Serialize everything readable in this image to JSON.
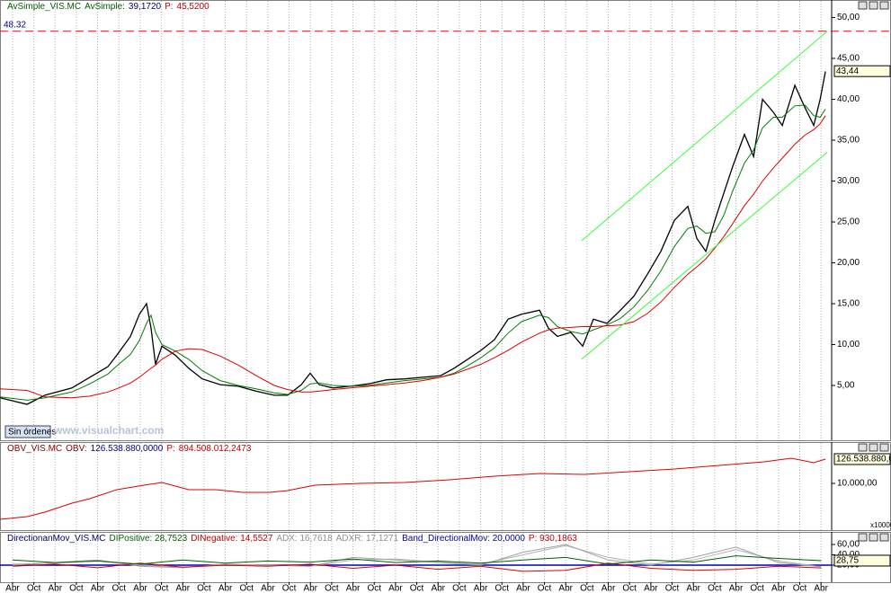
{
  "chart_data": [
    {
      "type": "line",
      "header": [
        {
          "text": "AvSimple_VIS.MC",
          "color": "#006000"
        },
        {
          "text": "AvSimple:",
          "color": "#006000"
        },
        {
          "text": "39,1720",
          "color": "#000080"
        },
        {
          "text": "P:",
          "color": "#c00000"
        },
        {
          "text": "45,5200",
          "color": "#c00000"
        }
      ],
      "xlim": [
        -0.59,
        38.5
      ],
      "xticks": [
        {
          "value": 0,
          "label": "Abr"
        },
        {
          "value": 1,
          "label": "Oct"
        },
        {
          "value": 2,
          "label": "Abr"
        },
        {
          "value": 3,
          "label": "Oct"
        },
        {
          "value": 4,
          "label": "Abr"
        },
        {
          "value": 5,
          "label": "Oct"
        },
        {
          "value": 6,
          "label": "Abr"
        },
        {
          "value": 7,
          "label": "Oct"
        },
        {
          "value": 8,
          "label": "Abr"
        },
        {
          "value": 9,
          "label": "Oct"
        },
        {
          "value": 10,
          "label": "Abr"
        },
        {
          "value": 11,
          "label": "Oct"
        },
        {
          "value": 12,
          "label": "Abr"
        },
        {
          "value": 13,
          "label": "Oct"
        },
        {
          "value": 14,
          "label": "Abr"
        },
        {
          "value": 15,
          "label": "Oct"
        },
        {
          "value": 16,
          "label": "Abr"
        },
        {
          "value": 17,
          "label": "Oct"
        },
        {
          "value": 18,
          "label": "Abr"
        },
        {
          "value": 19,
          "label": "Oct"
        },
        {
          "value": 20,
          "label": "Abr"
        },
        {
          "value": 21,
          "label": "Oct"
        },
        {
          "value": 22,
          "label": "Abr"
        },
        {
          "value": 23,
          "label": "Oct"
        },
        {
          "value": 24,
          "label": "Abr"
        },
        {
          "value": 25,
          "label": "Oct"
        },
        {
          "value": 26,
          "label": "Abr"
        },
        {
          "value": 27,
          "label": "Oct"
        },
        {
          "value": 28,
          "label": "Abr"
        },
        {
          "value": 29,
          "label": "Oct"
        },
        {
          "value": 30,
          "label": "Abr"
        },
        {
          "value": 31,
          "label": "Oct"
        },
        {
          "value": 32,
          "label": "Abr"
        },
        {
          "value": 33,
          "label": "Oct"
        },
        {
          "value": 34,
          "label": "Abr"
        },
        {
          "value": 35,
          "label": "Oct"
        },
        {
          "value": 36,
          "label": "Abr"
        },
        {
          "value": 37,
          "label": "Oct"
        },
        {
          "value": 38,
          "label": "Abr"
        }
      ],
      "ylim": [
        -1.7,
        52.14
      ],
      "yticks": [
        {
          "value": 5,
          "label": "5,00"
        },
        {
          "value": 10,
          "label": "10,00"
        },
        {
          "value": 15,
          "label": "15,00"
        },
        {
          "value": 20,
          "label": "20,00"
        },
        {
          "value": 25,
          "label": "25,00"
        },
        {
          "value": 30,
          "label": "30,00"
        },
        {
          "value": 35,
          "label": "35,00"
        },
        {
          "value": 40,
          "label": "40,00"
        },
        {
          "value": 45,
          "label": "45,00"
        },
        {
          "value": 50,
          "label": "50,00"
        }
      ],
      "x": [
        -0.59,
        0.68,
        1.52,
        2.79,
        3.63,
        4.48,
        4.9,
        5.54,
        5.96,
        6.3,
        6.51,
        6.72,
        7.02,
        7.65,
        8.28,
        8.92,
        9.76,
        10.61,
        11.45,
        12.3,
        12.93,
        13.57,
        13.99,
        14.41,
        15.05,
        15.89,
        16.74,
        17.58,
        18.43,
        19.27,
        20.12,
        20.75,
        21.39,
        22.02,
        22.65,
        23.29,
        23.92,
        24.77,
        25.19,
        25.61,
        26.24,
        26.8,
        27.3,
        27.94,
        28.57,
        29.2,
        29.84,
        30.47,
        31.11,
        31.74,
        32.16,
        32.59,
        33.01,
        33.43,
        33.85,
        34.4,
        34.83,
        35.25,
        35.76,
        36.18,
        36.77,
        37.24,
        37.66,
        37.96,
        38.21
      ],
      "series": [
        {
          "color": "#000000",
          "values": [
            3.5,
            2.7,
            3.8,
            4.7,
            6,
            7.3,
            8.7,
            11,
            13.7,
            15,
            12,
            7.6,
            9.8,
            8.7,
            7.1,
            5.8,
            5.1,
            4.9,
            4.3,
            3.8,
            3.8,
            5.1,
            6.5,
            5.1,
            4.7,
            4.9,
            5.2,
            5.7,
            5.8,
            6,
            6.2,
            7.1,
            8.2,
            9.3,
            10.6,
            13.1,
            13.7,
            14.2,
            12,
            11,
            11.5,
            9.8,
            13.1,
            12.6,
            14.2,
            15.9,
            18.6,
            21.4,
            25.2,
            26.9,
            23,
            21.4,
            25.2,
            28.5,
            31.8,
            35.7,
            33,
            40,
            38.4,
            36.8,
            41.7,
            39,
            36.8,
            40,
            43.4
          ]
        },
        {
          "color": "#008000",
          "values": [
            3.6,
            3.2,
            3.5,
            4.2,
            5.2,
            6.4,
            7.4,
            8.8,
            10.5,
            12.6,
            13.6,
            11.5,
            10,
            9.2,
            8.2,
            6.8,
            5.6,
            5,
            4.6,
            4.1,
            3.9,
            4.4,
            5.2,
            5.3,
            5,
            4.9,
            5,
            5.3,
            5.6,
            5.8,
            6,
            6.5,
            7.4,
            8.4,
            9.6,
            11.4,
            12.8,
            13.6,
            13.3,
            12.2,
            11.6,
            11.3,
            11.8,
            12.4,
            13.2,
            14.6,
            16.6,
            19,
            22,
            24.2,
            24.5,
            23.6,
            23.8,
            25.8,
            28.8,
            32.2,
            33.8,
            36.5,
            37.8,
            37.8,
            39.2,
            39.3,
            38,
            37.8,
            38.8
          ]
        },
        {
          "color": "#e00000",
          "values": [
            4.6,
            4.4,
            3.6,
            3.5,
            3.7,
            4.2,
            4.6,
            5.3,
            6,
            6.7,
            7.1,
            7.5,
            8.2,
            9.2,
            9.5,
            9.4,
            8.6,
            7.5,
            6.2,
            5,
            4.5,
            4.2,
            4.2,
            4.3,
            4.5,
            4.7,
            4.9,
            5.1,
            5.3,
            5.6,
            6,
            6.4,
            7,
            7.6,
            8.4,
            9.3,
            10.3,
            11.4,
            11.8,
            12,
            12.1,
            12.2,
            12.2,
            12.3,
            12.4,
            12.8,
            13.8,
            15.2,
            17,
            18.6,
            19.5,
            20.5,
            21.8,
            23.2,
            24.8,
            27,
            28.4,
            30,
            31.6,
            32.8,
            34.5,
            35.6,
            36.3,
            37,
            38
          ]
        },
        {
          "color": "#33ff33",
          "x": [
            26.75,
            38.29
          ],
          "values": [
            22.7,
            48.3
          ]
        },
        {
          "color": "#33ff33",
          "x": [
            26.75,
            38.29
          ],
          "values": [
            8.2,
            33.5
          ]
        }
      ],
      "hline": {
        "value": 48.32,
        "label": "48.32",
        "color": "#ff0000"
      },
      "last": {
        "value": 43.44,
        "label": "43,44"
      }
    },
    {
      "type": "line",
      "header": [
        {
          "text": "OBV_VIS.MC",
          "color": "#800000"
        },
        {
          "text": "OBV:",
          "color": "#800000"
        },
        {
          "text": "126.538.880,0000",
          "color": "#000080"
        },
        {
          "text": "P:",
          "color": "#c00000"
        },
        {
          "text": "894.508.012,2473",
          "color": "#c00000"
        }
      ],
      "xlim": [
        -0.59,
        38.5
      ],
      "ylim": [
        48940000,
        145170000
      ],
      "yticks": [
        {
          "value": 100000000,
          "label": "10.000,00"
        }
      ],
      "scale_note": "x10000",
      "x": [
        -0.59,
        0.68,
        1.52,
        2.79,
        3.63,
        4.9,
        6.17,
        7.02,
        8.28,
        9.55,
        10.82,
        12.09,
        12.93,
        14.2,
        16.31,
        18.43,
        20.54,
        22.65,
        24.77,
        26.88,
        28.99,
        31.11,
        33.22,
        35.33,
        36.6,
        37.66,
        38.21
      ],
      "series": [
        {
          "color": "#e00000",
          "values": [
            60700000,
            63700000,
            68600000,
            78400000,
            83300000,
            93100000,
            98000000,
            101000000,
            93100000,
            93100000,
            90200000,
            90200000,
            92100000,
            98000000,
            100000000,
            101000000,
            103900000,
            107900000,
            110800000,
            109800000,
            112800000,
            115700000,
            119600000,
            123600000,
            127500000,
            122600000,
            126538880
          ]
        }
      ],
      "last": {
        "value": 126538880,
        "label": "126.538.880,0"
      }
    },
    {
      "type": "line",
      "header": [
        {
          "text": "DirectionanMov_VIS.MC",
          "color": "#000060"
        },
        {
          "text": "DIPositive: 28,7523",
          "color": "#006000"
        },
        {
          "text": "DINegative: 14,5527",
          "color": "#c00000"
        },
        {
          "text": "ADX: 16,7618",
          "color": "#909090"
        },
        {
          "text": "ADXR: 17,1271",
          "color": "#909090"
        },
        {
          "text": "Band_DirectionalMov: 20,0000",
          "color": "#0000a0"
        },
        {
          "text": "P: 930,1863",
          "color": "#c00000"
        }
      ],
      "xlim": [
        -0.59,
        38.5
      ],
      "ylim": [
        -13,
        84.3
      ],
      "yticks": [
        {
          "value": 20,
          "label": "20,00"
        },
        {
          "value": 40,
          "label": "40,00"
        },
        {
          "value": 60,
          "label": "60,00"
        }
      ],
      "x": [
        0,
        2,
        4,
        6,
        8,
        10,
        12,
        14,
        16,
        18,
        20,
        22,
        24,
        26,
        28,
        30,
        32,
        34,
        36,
        38
      ],
      "series": [
        {
          "color": "#b0b0b0",
          "values": [
            22,
            24,
            28,
            20,
            16,
            20,
            20,
            18,
            30,
            32,
            26,
            22,
            40,
            58,
            35,
            22,
            30,
            50,
            28,
            17.13
          ]
        },
        {
          "color": "#a0a0a0",
          "values": [
            20,
            25,
            30,
            18,
            15,
            22,
            20,
            18,
            35,
            30,
            25,
            20,
            45,
            60,
            30,
            20,
            35,
            55,
            25,
            16.76
          ]
        },
        {
          "color": "#e00000",
          "values": [
            18,
            22,
            15,
            24,
            16,
            20,
            18,
            22,
            14,
            20,
            12,
            18,
            8,
            10,
            24,
            14,
            10,
            12,
            18,
            14.55
          ]
        },
        {
          "color": "#006000",
          "values": [
            30,
            25,
            28,
            22,
            30,
            24,
            28,
            26,
            32,
            25,
            28,
            24,
            30,
            35,
            22,
            30,
            26,
            38,
            33,
            28.75
          ]
        }
      ],
      "band": {
        "value": 20,
        "color": "#0000c0"
      },
      "last": {
        "value": 28.75,
        "label": "28,75"
      }
    }
  ],
  "toolbar": {
    "button": "Sin órdenes"
  },
  "watermark": "www.visualchart.com"
}
